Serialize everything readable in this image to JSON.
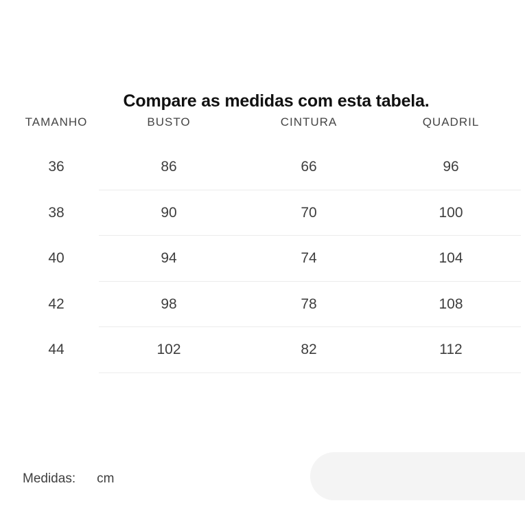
{
  "title": "Compare as medidas com esta tabela.",
  "table": {
    "columns": [
      "TAMANHO",
      "BUSTO",
      "CINTURA",
      "QUADRIL"
    ],
    "rows": [
      [
        "36",
        "86",
        "66",
        "96"
      ],
      [
        "38",
        "90",
        "70",
        "100"
      ],
      [
        "40",
        "94",
        "74",
        "104"
      ],
      [
        "42",
        "98",
        "78",
        "108"
      ],
      [
        "44",
        "102",
        "82",
        "112"
      ]
    ]
  },
  "footer": {
    "label": "Medidas:",
    "unit": "cm"
  },
  "colors": {
    "background": "#ffffff",
    "title": "#111111",
    "header": "#454545",
    "cell": "#3e3e3e",
    "divider": "#ececec",
    "pill": "#f4f4f4"
  }
}
